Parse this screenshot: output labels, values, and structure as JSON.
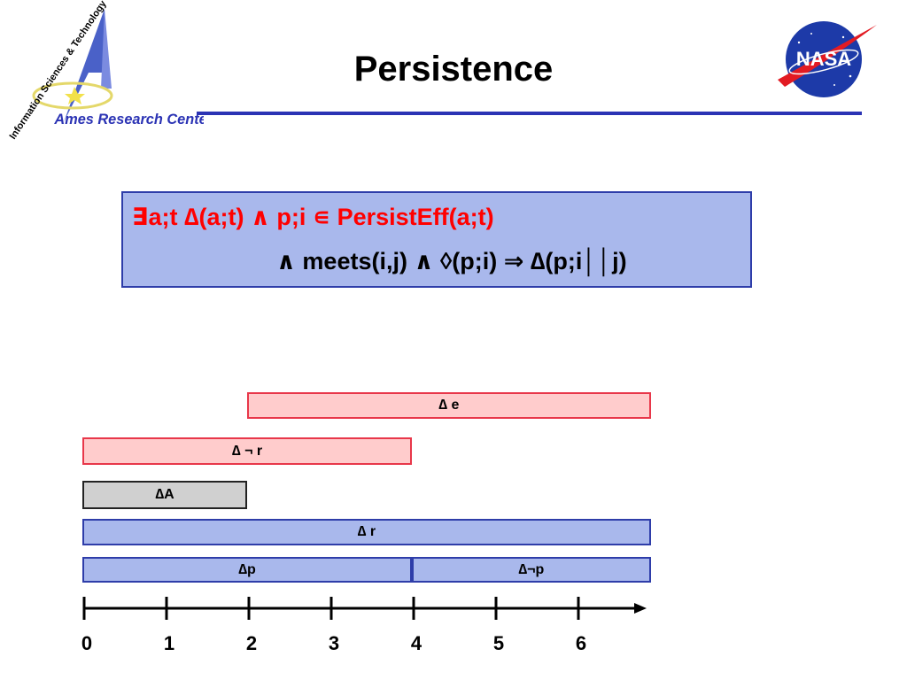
{
  "slide": {
    "title": "Persistence",
    "logo_left_text_arc": "Information Sciences & Technology",
    "logo_left_text_main": "Ames Research Center",
    "logo_right_text": "NASA"
  },
  "formula": {
    "line1": "∃a;t ∆(a;t) ∧ p;i ∊ PersistEff(a;t)",
    "line2": "∧ meets(i,j) ∧ ◊(p;i)  ⇒ ∆(p;i││j)"
  },
  "bars": [
    {
      "id": "delta-e",
      "label": "∆ e",
      "start": 2,
      "end": 6.9
    },
    {
      "id": "delta-not-r",
      "label": "∆ ¬ r",
      "start": 0,
      "end": 4
    },
    {
      "id": "delta-A",
      "label": "∆A",
      "start": 0,
      "end": 2
    },
    {
      "id": "delta-r",
      "label": "∆ r",
      "start": 0,
      "end": 6.9
    },
    {
      "id": "delta-p",
      "label": "∆p",
      "start": 0,
      "end": 4
    },
    {
      "id": "delta-not-p",
      "label": "∆¬p",
      "start": 4,
      "end": 6.9
    }
  ],
  "timeline": {
    "ticks": [
      "0",
      "1",
      "2",
      "3",
      "4",
      "5",
      "6"
    ]
  },
  "colors": {
    "title_rule": "#2b33b4",
    "formula_fill": "#a9b8ec",
    "formula_border": "#2e3da9",
    "formula_line1": "#ff0000",
    "pink_fill": "#ffcccc",
    "pink_border": "#e8374a",
    "gray_fill": "#d0d0d0",
    "gray_border": "#222222",
    "blue_fill": "#a9b8ec",
    "blue_border": "#2e3da9"
  }
}
